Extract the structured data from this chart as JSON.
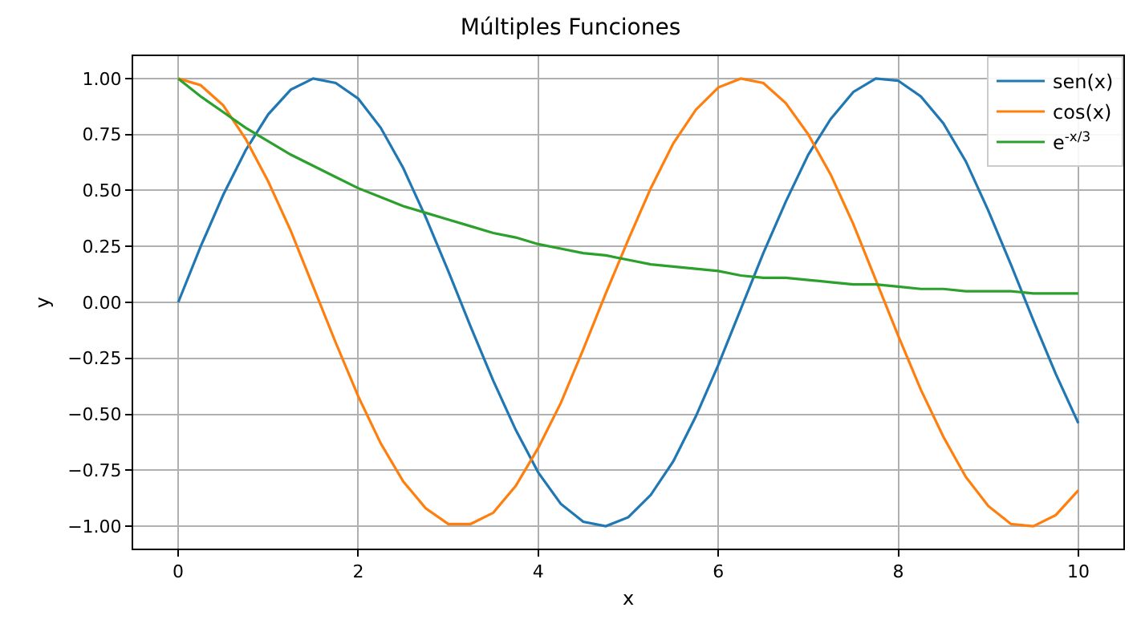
{
  "chart_data": {
    "type": "line",
    "title": "Múltiples Funciones",
    "xlabel": "x",
    "ylabel": "y",
    "x": [
      0,
      0.25,
      0.5,
      0.75,
      1,
      1.25,
      1.5,
      1.75,
      2,
      2.25,
      2.5,
      2.75,
      3,
      3.25,
      3.5,
      3.75,
      4,
      4.25,
      4.5,
      4.75,
      5,
      5.25,
      5.5,
      5.75,
      6,
      6.25,
      6.5,
      6.75,
      7,
      7.25,
      7.5,
      7.75,
      8,
      8.25,
      8.5,
      8.75,
      9,
      9.25,
      9.5,
      9.75,
      10
    ],
    "series": [
      {
        "name": "sen(x)",
        "color": "#1f77b4",
        "values": [
          0,
          0.25,
          0.48,
          0.68,
          0.84,
          0.95,
          1.0,
          0.98,
          0.91,
          0.78,
          0.6,
          0.38,
          0.14,
          -0.11,
          -0.35,
          -0.57,
          -0.76,
          -0.9,
          -0.98,
          -1.0,
          -0.96,
          -0.86,
          -0.71,
          -0.51,
          -0.28,
          -0.03,
          0.22,
          0.45,
          0.66,
          0.82,
          0.94,
          1.0,
          0.99,
          0.92,
          0.8,
          0.63,
          0.41,
          0.17,
          -0.08,
          -0.32,
          -0.54
        ]
      },
      {
        "name": "cos(x)",
        "color": "#ff7f0e",
        "values": [
          1,
          0.97,
          0.88,
          0.73,
          0.54,
          0.32,
          0.07,
          -0.18,
          -0.42,
          -0.63,
          -0.8,
          -0.92,
          -0.99,
          -0.99,
          -0.94,
          -0.82,
          -0.65,
          -0.45,
          -0.21,
          0.04,
          0.28,
          0.51,
          0.71,
          0.86,
          0.96,
          1.0,
          0.98,
          0.89,
          0.75,
          0.57,
          0.35,
          0.1,
          -0.15,
          -0.39,
          -0.6,
          -0.78,
          -0.91,
          -0.99,
          -1.0,
          -0.95,
          -0.84
        ]
      },
      {
        "name": "e$^{-x/3}$",
        "color": "#2ca02c",
        "values": [
          1,
          0.92,
          0.85,
          0.78,
          0.72,
          0.66,
          0.61,
          0.56,
          0.51,
          0.47,
          0.43,
          0.4,
          0.37,
          0.34,
          0.31,
          0.29,
          0.26,
          0.24,
          0.22,
          0.21,
          0.19,
          0.17,
          0.16,
          0.15,
          0.14,
          0.12,
          0.11,
          0.11,
          0.1,
          0.09,
          0.08,
          0.08,
          0.07,
          0.06,
          0.06,
          0.05,
          0.05,
          0.05,
          0.04,
          0.04,
          0.04
        ]
      }
    ],
    "xlim": [
      -0.5,
      10.5
    ],
    "xticks": [
      0,
      2,
      4,
      6,
      8,
      10
    ],
    "ylim": [
      -1.1,
      1.1
    ],
    "yticks": [
      {
        "value": -1,
        "label": "−1.00"
      },
      {
        "value": -0.75,
        "label": "−0.75"
      },
      {
        "value": -0.5,
        "label": "−0.50"
      },
      {
        "value": -0.25,
        "label": "−0.25"
      },
      {
        "value": 0,
        "label": "0.00"
      },
      {
        "value": 0.25,
        "label": "0.25"
      },
      {
        "value": 0.5,
        "label": "0.50"
      },
      {
        "value": 0.75,
        "label": "0.75"
      },
      {
        "value": 1,
        "label": "1.00"
      }
    ],
    "grid": true,
    "legend": "top right",
    "marker": "none",
    "line_style": "solid"
  }
}
